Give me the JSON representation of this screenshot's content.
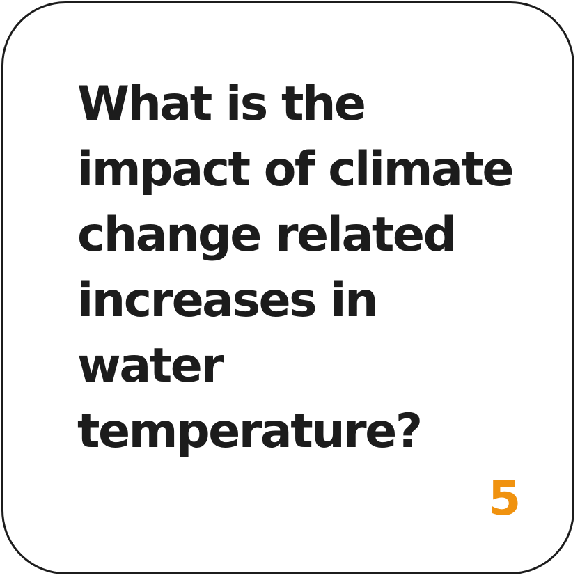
{
  "card": {
    "question_lines": [
      "What is the",
      "impact of climate",
      "change related",
      "increases in",
      "water",
      "temperature?"
    ],
    "number": "5"
  },
  "colors": {
    "text": "#1c1c1c",
    "border": "#1c1c1c",
    "accent": "#f0920f",
    "background": "#ffffff"
  }
}
